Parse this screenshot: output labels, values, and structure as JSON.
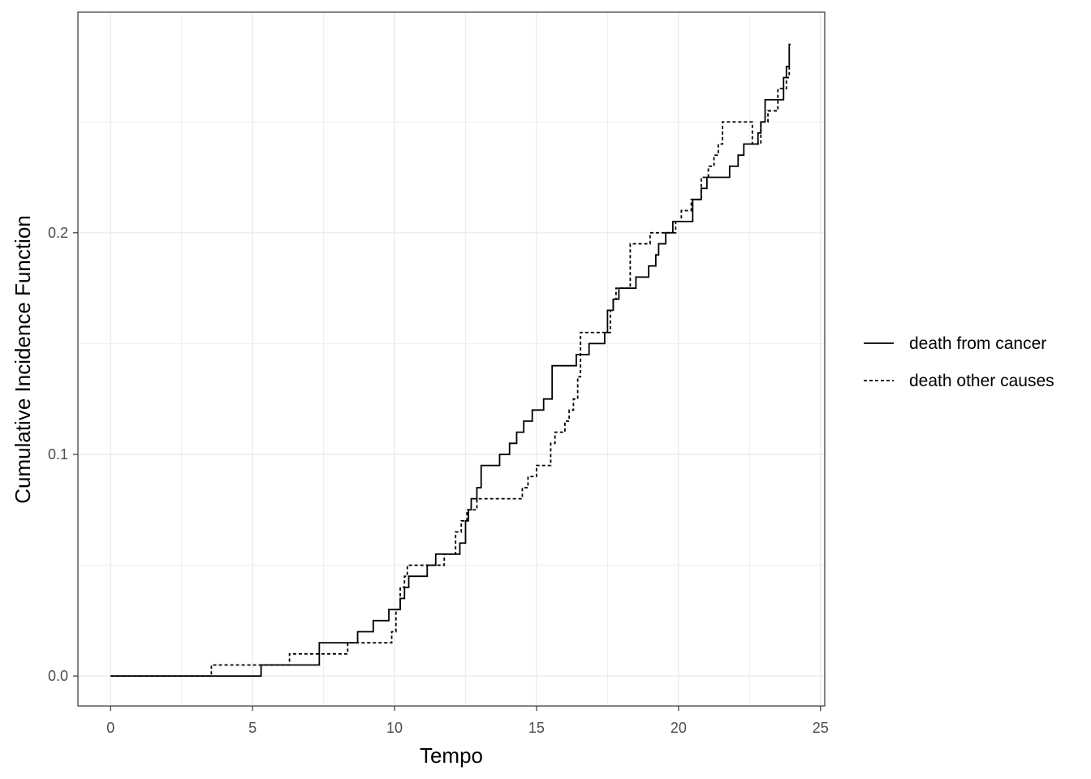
{
  "chart_data": {
    "type": "line",
    "title": "",
    "xlabel": "Tempo",
    "ylabel": "Cumulative Incidence Function",
    "xlim": [
      -1.15,
      25.15
    ],
    "ylim": [
      -0.0135,
      0.2995
    ],
    "x_ticks": [
      0,
      5,
      10,
      15,
      20,
      25
    ],
    "x_tick_labels": [
      "0",
      "5",
      "10",
      "15",
      "20",
      "25"
    ],
    "y_ticks": [
      0.0,
      0.1,
      0.2
    ],
    "y_tick_labels": [
      "0.0",
      "0.1",
      "0.2"
    ],
    "grid": true,
    "legend_position": "right",
    "colors": {
      "line": "#000000",
      "grid": "#ebebeb",
      "panel_border": "#333333",
      "background": "#ffffff"
    },
    "series": [
      {
        "name": "death from cancer",
        "linestyle": "solid",
        "x": [
          0,
          5.3,
          7.35,
          8.7,
          9.25,
          9.8,
          10.2,
          10.35,
          10.5,
          11.15,
          11.45,
          12.3,
          12.5,
          12.6,
          12.7,
          12.9,
          13.05,
          13.7,
          14.05,
          14.3,
          14.55,
          14.85,
          15.25,
          15.55,
          16.4,
          16.85,
          17.4,
          17.5,
          17.7,
          17.9,
          18.5,
          18.95,
          19.2,
          19.3,
          19.55,
          19.8,
          20.5,
          20.8,
          21.0,
          21.8,
          22.1,
          22.3,
          22.8,
          22.9,
          23.05,
          23.7,
          23.8,
          23.9
        ],
        "y": [
          0,
          0.005,
          0.015,
          0.02,
          0.025,
          0.03,
          0.035,
          0.04,
          0.045,
          0.05,
          0.055,
          0.06,
          0.07,
          0.075,
          0.08,
          0.085,
          0.095,
          0.1,
          0.105,
          0.11,
          0.115,
          0.12,
          0.125,
          0.14,
          0.145,
          0.15,
          0.155,
          0.165,
          0.17,
          0.175,
          0.18,
          0.185,
          0.19,
          0.195,
          0.2,
          0.205,
          0.215,
          0.22,
          0.225,
          0.23,
          0.235,
          0.24,
          0.245,
          0.25,
          0.26,
          0.27,
          0.275,
          0.285
        ],
        "x_end": 23.95
      },
      {
        "name": "death other causes",
        "linestyle": "dotted",
        "x": [
          0,
          3.55,
          6.3,
          8.35,
          9.9,
          10.05,
          10.2,
          10.35,
          10.45,
          10.6,
          11.55,
          11.75,
          12.15,
          12.35,
          12.55,
          12.9,
          14.5,
          14.7,
          15.0,
          15.5,
          15.65,
          16.0,
          16.15,
          16.3,
          16.45,
          16.55,
          16.7,
          17.6,
          17.7,
          17.8,
          18.3,
          19.0,
          19.4,
          19.9,
          20.1,
          20.45,
          20.8,
          21.05,
          21.25,
          21.4,
          21.55,
          22.5,
          22.6,
          22.9,
          23.15,
          23.3,
          23.5,
          23.8,
          23.9
        ],
        "y": [
          0,
          0.005,
          0.01,
          0.015,
          0.02,
          0.03,
          0.04,
          0.045,
          0.05,
          0.05,
          0.05,
          0.055,
          0.065,
          0.07,
          0.075,
          0.08,
          0.085,
          0.09,
          0.095,
          0.105,
          0.11,
          0.115,
          0.12,
          0.125,
          0.135,
          0.155,
          0.155,
          0.165,
          0.17,
          0.175,
          0.195,
          0.2,
          0.2,
          0.205,
          0.21,
          0.215,
          0.225,
          0.23,
          0.235,
          0.24,
          0.25,
          0.25,
          0.24,
          0.25,
          0.255,
          0.255,
          0.265,
          0.27,
          0.275
        ],
        "x_end": 23.95
      }
    ]
  }
}
